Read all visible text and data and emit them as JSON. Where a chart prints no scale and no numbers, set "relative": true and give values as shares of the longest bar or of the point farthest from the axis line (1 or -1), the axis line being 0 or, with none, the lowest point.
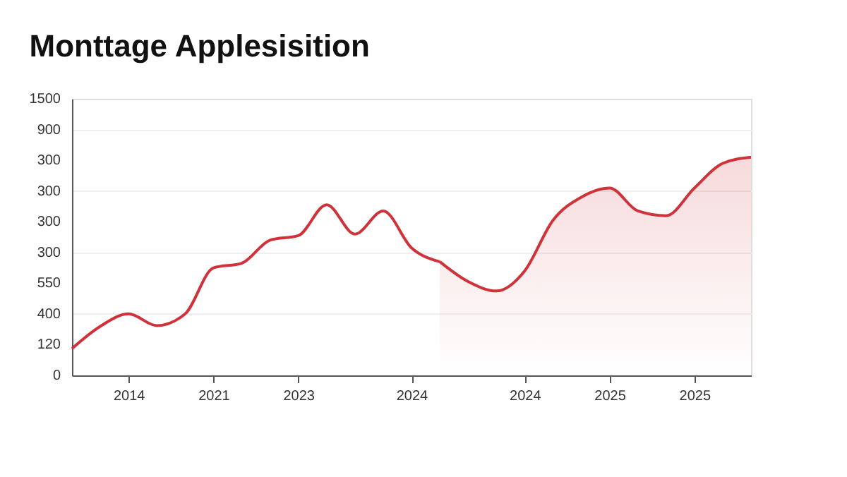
{
  "chart_data": {
    "type": "line",
    "title": "Monttage Applesisition",
    "relative": true,
    "categories": [
      null,
      null,
      "2014",
      null,
      null,
      "2021",
      null,
      null,
      "2023",
      null,
      null,
      null,
      "2024",
      null,
      null,
      null,
      "2024",
      null,
      null,
      "2025",
      null,
      null,
      "2025",
      null,
      null
    ],
    "annotations": [
      "0",
      "120",
      "400",
      "550",
      "300",
      "300",
      "300",
      "300",
      "900",
      "1500"
    ],
    "grid": "y",
    "line_style": "solid",
    "series": [
      {
        "color": "#d0323a",
        "values": [
          0.123,
          0.225,
          0.282,
          0.228,
          0.282,
          0.493,
          0.514,
          0.62,
          0.641,
          0.782,
          0.648,
          0.754,
          0.585,
          0.521,
          null,
          null,
          null,
          null,
          null,
          null,
          null,
          null,
          null,
          null,
          null
        ]
      },
      {
        "type": "area",
        "color": "#d0323a",
        "values": [
          null,
          null,
          null,
          null,
          null,
          null,
          null,
          null,
          null,
          null,
          null,
          null,
          null,
          0.521,
          0.43,
          0.387,
          0.479,
          0.711,
          0.817,
          0.859,
          0.754,
          0.732,
          0.859,
          0.972,
          1.0
        ]
      }
    ]
  }
}
